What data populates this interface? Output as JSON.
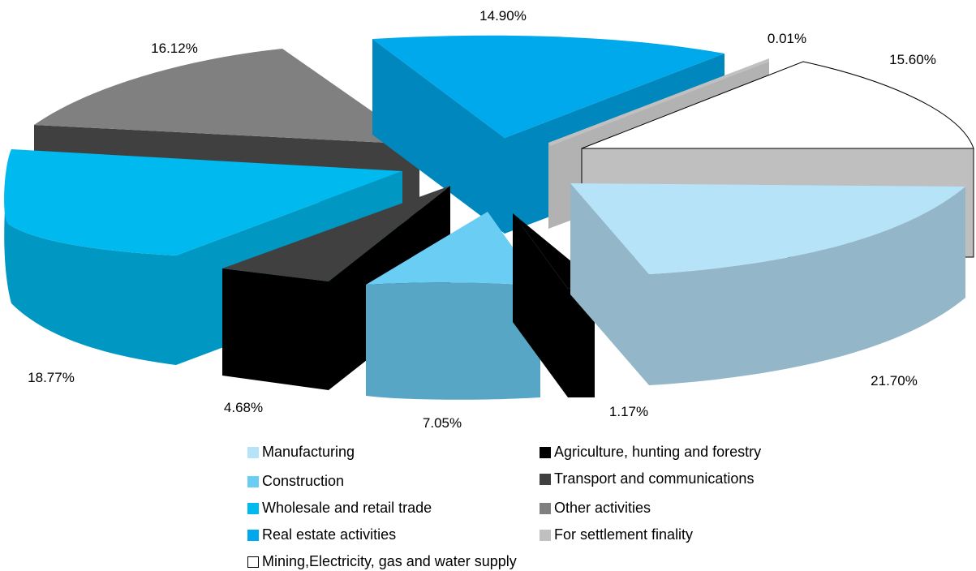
{
  "chart_data": {
    "type": "pie",
    "variant": "exploded-3d",
    "slices": [
      {
        "label": "Manufacturing",
        "value": 21.7,
        "pct_label": "21.70%",
        "color": "#B7E3F8",
        "side_color": "#93B6C8"
      },
      {
        "label": "Agriculture, hunting and forestry",
        "value": 1.17,
        "pct_label": "1.17%",
        "color": "#000000",
        "side_color": "#000000"
      },
      {
        "label": "Construction",
        "value": 7.05,
        "pct_label": "7.05%",
        "color": "#6ACDF4",
        "side_color": "#58A6C6"
      },
      {
        "label": "Transport and communications",
        "value": 4.68,
        "pct_label": "4.68%",
        "color": "#404040",
        "side_color": "#000000"
      },
      {
        "label": "Wholesale and retail trade",
        "value": 18.77,
        "pct_label": "18.77%",
        "color": "#00B9EF",
        "side_color": "#0097C2"
      },
      {
        "label": "Other activities",
        "value": 16.12,
        "pct_label": "16.12%",
        "color": "#808080",
        "side_color": "#404040"
      },
      {
        "label": "Real estate activities",
        "value": 14.9,
        "pct_label": "14.90%",
        "color": "#00A8EC",
        "side_color": "#0088BE"
      },
      {
        "label": "For settlement finality",
        "value": 0.01,
        "pct_label": "0.01%",
        "color": "#C0C0C0",
        "side_color": "#B2B2B2"
      },
      {
        "label": "Mining,Electricity, gas and water supply",
        "value": 15.6,
        "pct_label": "15.60%",
        "color": "#FFFFFF",
        "side_color": "#BFBFBF"
      }
    ],
    "legend": [
      {
        "label": "Manufacturing",
        "color": "#B7E3F8"
      },
      {
        "label": "Agriculture, hunting and forestry",
        "color": "#000000"
      },
      {
        "label": "Construction",
        "color": "#6ACDF4"
      },
      {
        "label": "Transport and communications",
        "color": "#404040"
      },
      {
        "label": "Wholesale and retail trade",
        "color": "#00B9EF"
      },
      {
        "label": "Other activities",
        "color": "#808080"
      },
      {
        "label": "Real estate activities",
        "color": "#00A8EC"
      },
      {
        "label": "For settlement finality",
        "color": "#C0C0C0"
      },
      {
        "label": "Mining,Electricity, gas and water supply",
        "color": "#FFFFFF"
      }
    ],
    "legend_position": "bottom"
  }
}
